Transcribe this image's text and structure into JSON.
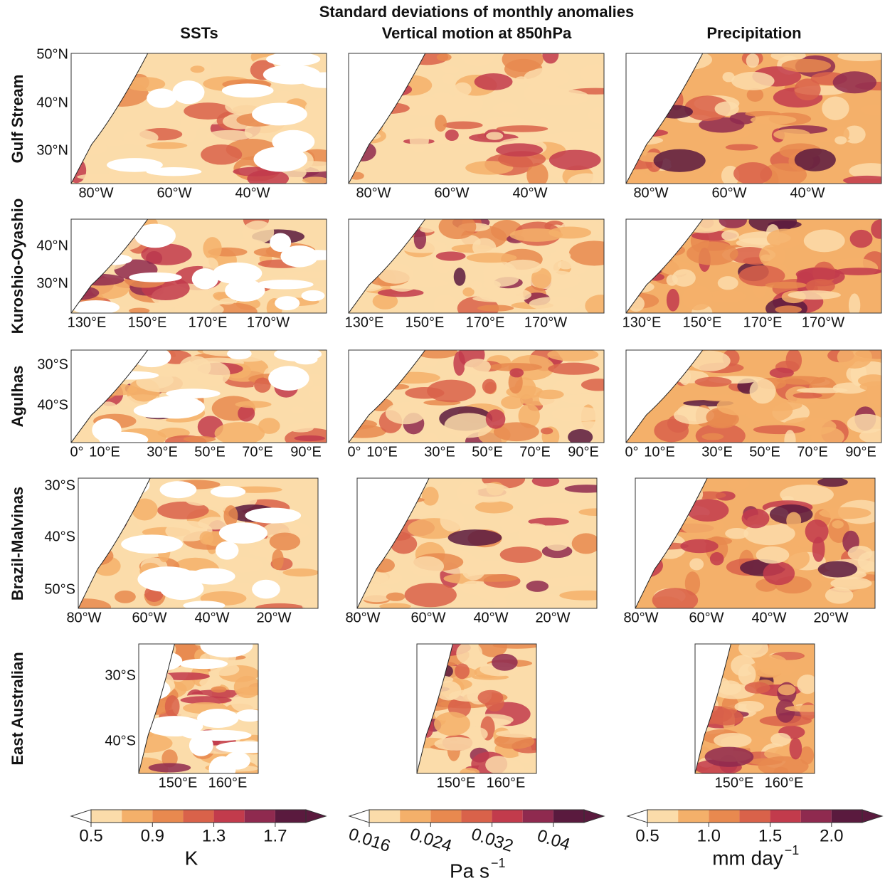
{
  "title": "Standard deviations of monthly anomalies",
  "columns": [
    "SSTs",
    "Vertical motion at 850hPa",
    "Precipitation"
  ],
  "rows": [
    {
      "label": "Gulf Stream",
      "lat_ticks": [
        "50°N",
        "40°N",
        "30°N"
      ],
      "lon_ticks": [
        "80°W",
        "60°W",
        "40°W"
      ]
    },
    {
      "label": "Kuroshio-Oyashio",
      "lat_ticks": [
        "40°N",
        "30°N"
      ],
      "lon_ticks": [
        "130°E",
        "150°E",
        "170°E",
        "170°W"
      ]
    },
    {
      "label": "Agulhas",
      "lat_ticks": [
        "30°S",
        "40°S"
      ],
      "lon_ticks": [
        "0°",
        "10°E",
        "30°E",
        "50°E",
        "70°E",
        "90°E"
      ]
    },
    {
      "label": "Brazil-Malvinas",
      "lat_ticks": [
        "30°S",
        "40°S",
        "50°S"
      ],
      "lon_ticks": [
        "80°W",
        "60°W",
        "40°W",
        "20°W"
      ]
    },
    {
      "label": "East Australian",
      "lat_ticks": [
        "30°S",
        "40°S"
      ],
      "lon_ticks": [
        "150°E",
        "160°E"
      ]
    }
  ],
  "colors": [
    "#fbdcaa",
    "#f4b06a",
    "#e8894f",
    "#d9624a",
    "#c23b4c",
    "#8f2a4f",
    "#5a1a3e"
  ],
  "colorbars": [
    {
      "lim": [
        0.5,
        1.9
      ],
      "ticks": [
        0.5,
        0.9,
        1.3,
        1.7
      ],
      "unit": {
        "base": "K"
      }
    },
    {
      "lim": [
        0.016,
        0.044
      ],
      "ticks": [
        0.016,
        0.024,
        0.032,
        0.04
      ],
      "unit": {
        "base": "Pa s",
        "exponent": "−1"
      }
    },
    {
      "lim": [
        0.5,
        2.25
      ],
      "ticks": [
        0.5,
        {
          "value": 1.0,
          "label": "1.0"
        },
        1.5,
        {
          "value": 2.0,
          "label": "2.0"
        }
      ],
      "unit": {
        "base": "mm day",
        "exponent": "−1"
      }
    }
  ]
}
